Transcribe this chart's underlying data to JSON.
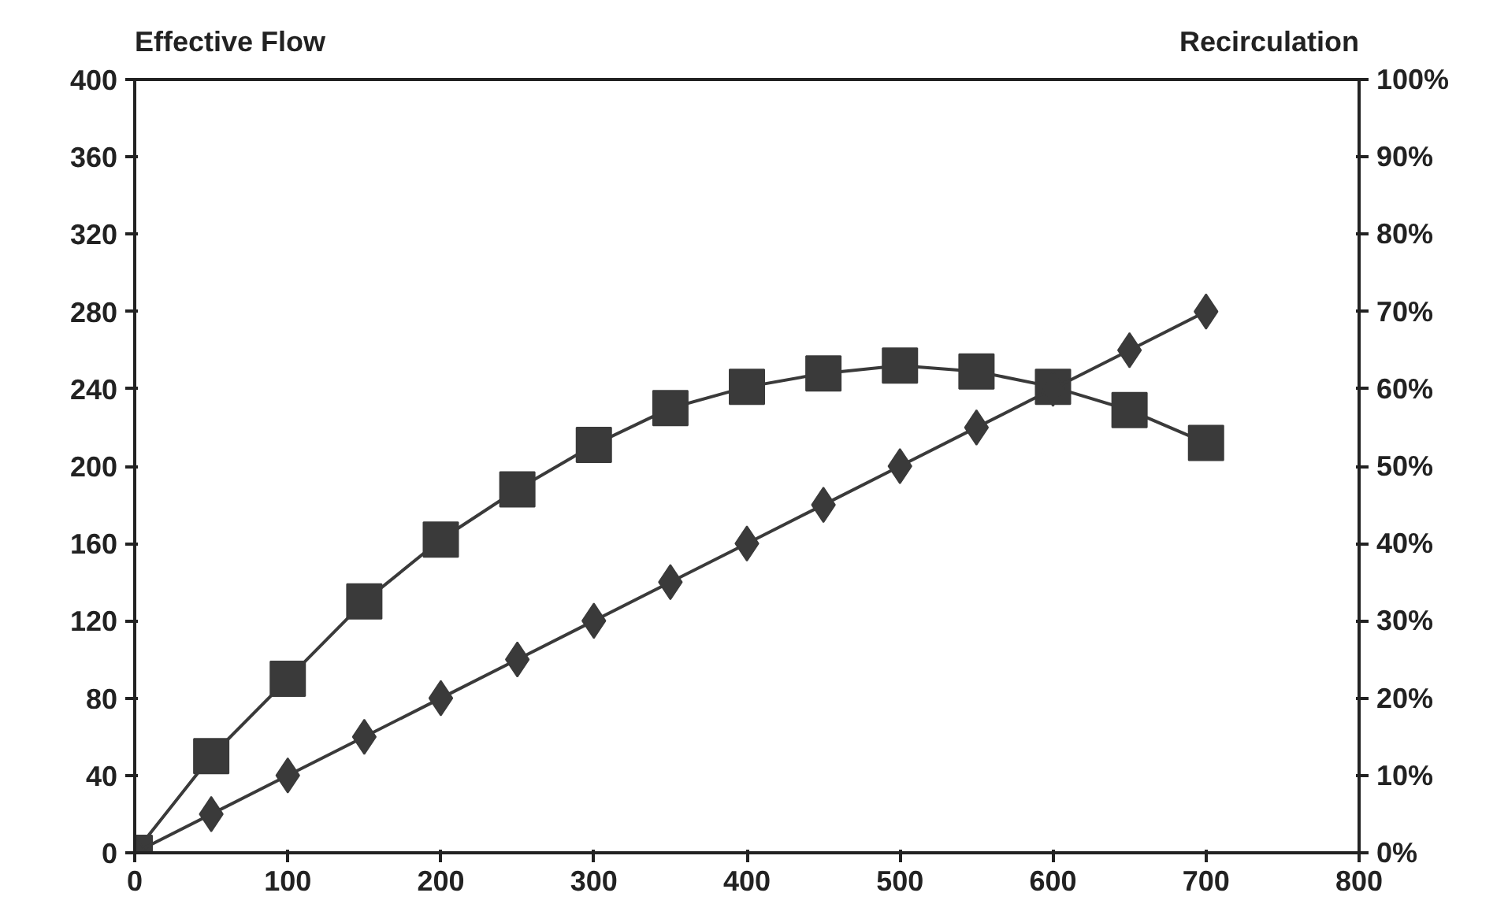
{
  "chart_data": {
    "type": "line",
    "ylabel": "Effective Flow",
    "y2label": "Recirculation",
    "x": [
      0,
      50,
      100,
      150,
      200,
      250,
      300,
      350,
      400,
      450,
      500,
      550,
      600,
      650,
      700
    ],
    "series": [
      {
        "color": "#3a3a3a",
        "marker": "square",
        "values": [
          0,
          50,
          90,
          130,
          162,
          188,
          211,
          230,
          241,
          248,
          252,
          249,
          241,
          229,
          212
        ]
      },
      {
        "color": "#3a3a3a",
        "marker": "diamond",
        "axis": "y2",
        "values": [
          0,
          5,
          10,
          15,
          20,
          25,
          30,
          35,
          40,
          45,
          50,
          55,
          60,
          65,
          70
        ]
      }
    ],
    "xlim": [
      0,
      800
    ],
    "xticks": [
      0,
      100,
      200,
      300,
      400,
      500,
      600,
      700,
      800
    ],
    "ylim": [
      0,
      400
    ],
    "yticks": [
      0,
      40,
      80,
      120,
      160,
      200,
      240,
      280,
      320,
      360,
      400
    ],
    "y2lim": [
      0,
      100
    ],
    "y2ticks": [
      {
        "value": 0,
        "label": "0%"
      },
      {
        "value": 10,
        "label": "10%"
      },
      {
        "value": 20,
        "label": "20%"
      },
      {
        "value": 30,
        "label": "30%"
      },
      {
        "value": 40,
        "label": "40%"
      },
      {
        "value": 50,
        "label": "50%"
      },
      {
        "value": 60,
        "label": "60%"
      },
      {
        "value": 70,
        "label": "70%"
      },
      {
        "value": 80,
        "label": "80%"
      },
      {
        "value": 90,
        "label": "90%"
      },
      {
        "value": 100,
        "label": "100%"
      }
    ],
    "grid": false
  }
}
